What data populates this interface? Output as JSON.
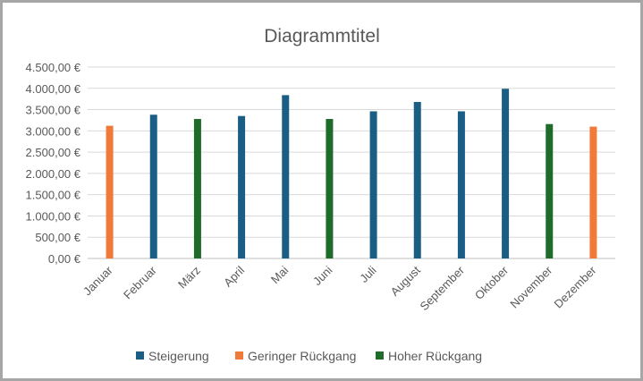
{
  "chart_data": {
    "type": "bar",
    "title": "Diagrammtitel",
    "xlabel": "",
    "ylabel": "",
    "categories": [
      "Januar",
      "Februar",
      "März",
      "April",
      "Mai",
      "Juni",
      "Juli",
      "August",
      "September",
      "Oktober",
      "November",
      "Dezember"
    ],
    "series": [
      {
        "name": "Steigerung",
        "color": "#1a5e85",
        "values": [
          null,
          3380,
          null,
          3350,
          3840,
          null,
          3460,
          3680,
          3460,
          3990,
          null,
          null
        ]
      },
      {
        "name": "Geringer Rückgang",
        "color": "#f07a3a",
        "values": [
          3120,
          null,
          null,
          null,
          null,
          null,
          null,
          null,
          null,
          null,
          null,
          3100
        ]
      },
      {
        "name": "Hoher Rückgang",
        "color": "#1e6b2a",
        "values": [
          null,
          null,
          3280,
          null,
          null,
          3280,
          null,
          null,
          null,
          null,
          3160,
          null
        ]
      }
    ],
    "ylim": [
      0,
      4500
    ],
    "yticks": [
      "0,00 €",
      "500,00 €",
      "1.000,00 €",
      "1.500,00 €",
      "2.000,00 €",
      "2.500,00 €",
      "3.000,00 €",
      "3.500,00 €",
      "4.000,00 €",
      "4.500,00 €"
    ],
    "grid": true,
    "legend_position": "bottom"
  }
}
